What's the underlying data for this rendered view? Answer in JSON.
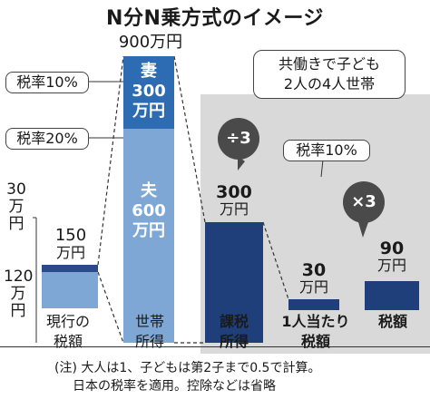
{
  "title": "N分N乗方式のイメージ",
  "note": {
    "line1": "共働きで子ども",
    "line2": "2人の4人世帯"
  },
  "pills": {
    "rate10_left": "税率10%",
    "rate20_left": "税率20%",
    "rate10_right": "税率10%"
  },
  "ops": {
    "divide": "÷3",
    "multiply": "×3"
  },
  "current_tax": {
    "amount_top": "30",
    "amount_top_unit1": "万",
    "amount_top_unit2": "円",
    "amount_mid": "150",
    "amount_mid_unit": "万円",
    "amount_bottom": "120",
    "amount_bottom_unit1": "万",
    "amount_bottom_unit2": "円"
  },
  "household_income": {
    "total": "900万円",
    "wife_label": "妻",
    "wife_amount": "300",
    "wife_unit": "万円",
    "husband_label": "夫",
    "husband_amount": "600",
    "husband_unit": "万円"
  },
  "taxable_income": {
    "amount": "300",
    "unit": "万円"
  },
  "per_person_tax": {
    "amount": "30",
    "unit": "万円"
  },
  "tax_amount": {
    "amount": "90",
    "unit": "万円"
  },
  "categories": [
    {
      "line1": "現行の",
      "line2": "税額"
    },
    {
      "line1": "世帯",
      "line2": "所得"
    },
    {
      "line1": "課税",
      "line2": "所得"
    },
    {
      "line1": "1人当たり",
      "line2": "税額"
    },
    {
      "line1": "税額",
      "line2": ""
    }
  ],
  "footnote": {
    "line1": "(注) 大人は1、子どもは第2子まで0.5で計算。",
    "line2": "日本の税率を適用。控除などは省略"
  },
  "colors": {
    "light_blue": "#7fa7d6",
    "dark_blue": "#2a4a8a",
    "navy": "#1f3f7a",
    "panel_grey": "#d9d9d9"
  }
}
